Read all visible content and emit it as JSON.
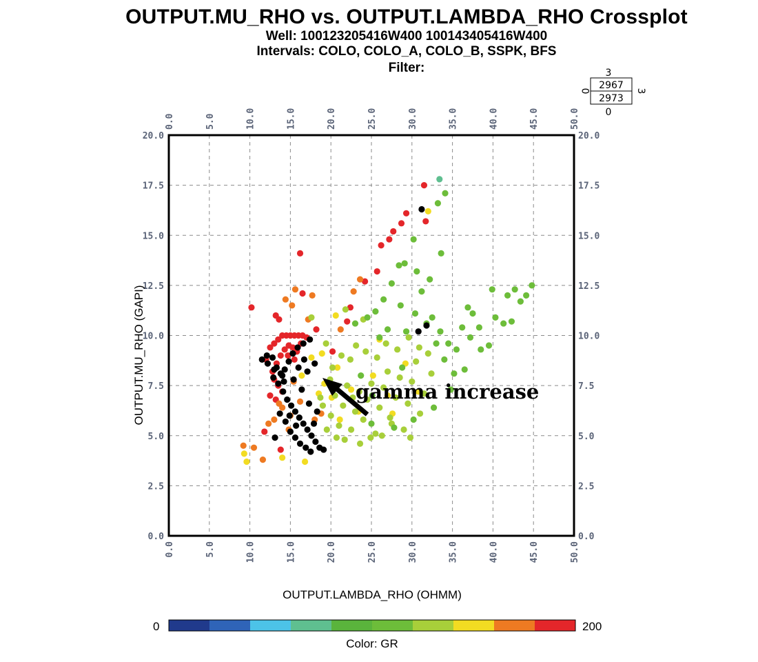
{
  "header": {
    "title": "OUTPUT.MU_RHO vs. OUTPUT.LAMBDA_RHO Crossplot",
    "well": "Well: 100123205416W400 100143405416W400",
    "intervals": "Intervals: COLO, COLO_A, COLO_B, SSPK, BFS",
    "filter": "Filter:"
  },
  "corner_legend": {
    "top": "3",
    "left": "0",
    "right": "3",
    "bottom": "0",
    "values": [
      "2967",
      "2973"
    ]
  },
  "annotation": "gamma increase",
  "colorbar": {
    "min_label": "0",
    "max_label": "200",
    "caption": "Color: GR",
    "colors": [
      "#203a8c",
      "#2f64b8",
      "#4cc3e8",
      "#5fbf90",
      "#5ab43c",
      "#6dbd3a",
      "#a8cf3a",
      "#f2dc22",
      "#ee7a22",
      "#e4262a"
    ]
  },
  "chart_data": {
    "type": "scatter",
    "xlabel": "OUTPUT.LAMBDA_RHO (OHMM)",
    "ylabel": "OUTPUT.MU_RHO (GAPI)",
    "xlim": [
      0,
      50
    ],
    "ylim": [
      0,
      20
    ],
    "xticks": [
      "0.0",
      "5.0",
      "10.0",
      "15.0",
      "20.0",
      "25.0",
      "30.0",
      "35.0",
      "40.0",
      "45.0",
      "50.0"
    ],
    "yticks": [
      "0.0",
      "2.5",
      "5.0",
      "7.5",
      "10.0",
      "12.5",
      "15.0",
      "17.5",
      "20.0"
    ],
    "grid": true,
    "color_by": "GR",
    "series": [
      {
        "color": "#e4262a",
        "points": [
          [
            12,
            8.8
          ],
          [
            12.5,
            9.4
          ],
          [
            13,
            9.6
          ],
          [
            13.5,
            9.8
          ],
          [
            14,
            10
          ],
          [
            14.5,
            10
          ],
          [
            15,
            10
          ],
          [
            15.5,
            10
          ],
          [
            16,
            10
          ],
          [
            16.5,
            10
          ],
          [
            17,
            9.9
          ],
          [
            12.8,
            8.2
          ],
          [
            13.3,
            8.6
          ],
          [
            13.8,
            9.0
          ],
          [
            14.3,
            9.3
          ],
          [
            14.8,
            9.5
          ],
          [
            15.3,
            9.4
          ],
          [
            15.8,
            9.2
          ],
          [
            16.3,
            9.6
          ],
          [
            13,
            7.8
          ],
          [
            13.5,
            7.5
          ],
          [
            14,
            7.2
          ],
          [
            12.5,
            7.0
          ],
          [
            13.2,
            6.8
          ],
          [
            14.7,
            9.0
          ],
          [
            15.5,
            8.8
          ],
          [
            10.2,
            11.4
          ],
          [
            13.2,
            11
          ],
          [
            13.6,
            10.8
          ],
          [
            11.8,
            5.2
          ],
          [
            13.8,
            4.3
          ],
          [
            16.2,
            14.1
          ],
          [
            22,
            10.7
          ],
          [
            22.4,
            11.4
          ],
          [
            24.2,
            12.7
          ],
          [
            25.7,
            13.2
          ],
          [
            26.2,
            14.5
          ],
          [
            27.2,
            14.8
          ],
          [
            27.7,
            15.2
          ],
          [
            28.7,
            15.6
          ],
          [
            29.3,
            16.1
          ],
          [
            31.5,
            17.5
          ],
          [
            31.7,
            15.7
          ],
          [
            16.5,
            12.1
          ],
          [
            18.2,
            10.3
          ],
          [
            20.2,
            9.2
          ]
        ]
      },
      {
        "color": "#ee7a22",
        "points": [
          [
            9.2,
            4.5
          ],
          [
            10.5,
            4.4
          ],
          [
            11.6,
            3.8
          ],
          [
            12.3,
            5.6
          ],
          [
            13.0,
            5.8
          ],
          [
            14.0,
            6.4
          ],
          [
            15.0,
            6.0
          ],
          [
            15.2,
            11.5
          ],
          [
            15.6,
            12.3
          ],
          [
            17.7,
            12.0
          ],
          [
            14.4,
            11.8
          ],
          [
            17.2,
            10.8
          ],
          [
            15.4,
            7.7
          ],
          [
            16.2,
            6.7
          ],
          [
            13.6,
            6.6
          ],
          [
            14.8,
            5.3
          ],
          [
            18.8,
            6.1
          ],
          [
            18.0,
            5.8
          ],
          [
            21.2,
            10.3
          ],
          [
            22.8,
            12.2
          ],
          [
            23.6,
            12.8
          ]
        ]
      },
      {
        "color": "#f2dc22",
        "points": [
          [
            9.3,
            4.1
          ],
          [
            9.6,
            3.7
          ],
          [
            14.0,
            3.9
          ],
          [
            16.8,
            3.7
          ],
          [
            18.5,
            7.1
          ],
          [
            19.2,
            7.6
          ],
          [
            20.1,
            6.9
          ],
          [
            20.8,
            8.4
          ],
          [
            21.1,
            5.8
          ],
          [
            22.5,
            7.3
          ],
          [
            23.4,
            6.2
          ],
          [
            25.2,
            8.0
          ],
          [
            26.0,
            9.8
          ],
          [
            27.0,
            7.0
          ],
          [
            27.6,
            6.1
          ],
          [
            29.2,
            8.6
          ],
          [
            30.8,
            7.2
          ],
          [
            32.0,
            16.2
          ],
          [
            20.6,
            11.0
          ],
          [
            18.9,
            9.1
          ],
          [
            17.6,
            8.9
          ],
          [
            16.4,
            8.0
          ]
        ]
      },
      {
        "color": "#a8cf3a",
        "points": [
          [
            19,
            6.5
          ],
          [
            20,
            6.0
          ],
          [
            20.5,
            7.0
          ],
          [
            21,
            5.5
          ],
          [
            21.5,
            6.5
          ],
          [
            22,
            7.5
          ],
          [
            22.5,
            5.3
          ],
          [
            23,
            6.2
          ],
          [
            23.5,
            7.2
          ],
          [
            24,
            5.8
          ],
          [
            24.5,
            6.8
          ],
          [
            25,
            7.6
          ],
          [
            25.5,
            5.1
          ],
          [
            26,
            6.4
          ],
          [
            26.5,
            7.4
          ],
          [
            27,
            8.2
          ],
          [
            27.5,
            5.6
          ],
          [
            28,
            6.9
          ],
          [
            28.5,
            7.9
          ],
          [
            29,
            5.3
          ],
          [
            29.5,
            6.6
          ],
          [
            30,
            7.7
          ],
          [
            30.5,
            8.7
          ],
          [
            31,
            6.1
          ],
          [
            31.5,
            7.1
          ],
          [
            32,
            9.1
          ],
          [
            20.2,
            8.4
          ],
          [
            21.3,
            9.0
          ],
          [
            22.4,
            8.8
          ],
          [
            23.1,
            9.5
          ],
          [
            24.3,
            9.2
          ],
          [
            25.7,
            8.9
          ],
          [
            26.8,
            9.6
          ],
          [
            28.2,
            9.3
          ],
          [
            29.6,
            9.9
          ],
          [
            21.7,
            4.8
          ],
          [
            23.6,
            4.6
          ],
          [
            24.9,
            4.9
          ],
          [
            26.3,
            5.0
          ],
          [
            19.5,
            5.3
          ],
          [
            20.7,
            4.9
          ],
          [
            18.7,
            6.9
          ],
          [
            19.9,
            7.8
          ],
          [
            22.7,
            6.9
          ],
          [
            27.3,
            5.9
          ],
          [
            24.0,
            10.8
          ],
          [
            21.8,
            11.3
          ],
          [
            19.4,
            9.6
          ],
          [
            30.9,
            9.4
          ],
          [
            32.4,
            8.1
          ],
          [
            29.8,
            4.9
          ],
          [
            17.6,
            10.9
          ]
        ]
      },
      {
        "color": "#6dbd3a",
        "points": [
          [
            23,
            10.6
          ],
          [
            24.5,
            10.9
          ],
          [
            25.5,
            11.2
          ],
          [
            26.5,
            11.8
          ],
          [
            27.5,
            12.6
          ],
          [
            28.4,
            13.5
          ],
          [
            29.1,
            13.6
          ],
          [
            30.2,
            14.8
          ],
          [
            31.2,
            12.2
          ],
          [
            32.5,
            10.9
          ],
          [
            33.5,
            10.2
          ],
          [
            34.5,
            9.6
          ],
          [
            35.5,
            9.3
          ],
          [
            36.5,
            8.3
          ],
          [
            37.5,
            11.1
          ],
          [
            38.5,
            9.3
          ],
          [
            39.5,
            9.5
          ],
          [
            40.3,
            10.9
          ],
          [
            41.3,
            10.6
          ],
          [
            41.8,
            12.0
          ],
          [
            42.7,
            12.3
          ],
          [
            43.4,
            11.7
          ],
          [
            44.1,
            12.0
          ],
          [
            44.8,
            12.5
          ],
          [
            33.2,
            16.6
          ],
          [
            33.6,
            14.1
          ],
          [
            34.1,
            17.1
          ],
          [
            27.0,
            10.3
          ],
          [
            28.6,
            11.5
          ],
          [
            30.4,
            11.1
          ],
          [
            31.8,
            10.6
          ],
          [
            33.0,
            9.6
          ],
          [
            34.0,
            8.8
          ],
          [
            35.2,
            8.1
          ],
          [
            36.2,
            10.4
          ],
          [
            37.2,
            9.9
          ],
          [
            26.0,
            9.9
          ],
          [
            29.3,
            10.2
          ],
          [
            32.2,
            12.8
          ],
          [
            30.6,
            13.2
          ],
          [
            38.3,
            10.4
          ],
          [
            42.3,
            10.7
          ],
          [
            25.0,
            5.6
          ],
          [
            27.8,
            5.4
          ],
          [
            30.2,
            5.8
          ],
          [
            32.7,
            6.4
          ],
          [
            34.8,
            7.3
          ],
          [
            36.9,
            11.4
          ],
          [
            39.9,
            12.3
          ],
          [
            23.7,
            8.0
          ],
          [
            25.1,
            7.0
          ],
          [
            28.8,
            8.4
          ]
        ]
      },
      {
        "color": "#5fbf90",
        "points": [
          [
            33.4,
            17.8
          ]
        ]
      },
      {
        "color": "#000000",
        "points": [
          [
            11.5,
            8.8
          ],
          [
            12.2,
            8.6
          ],
          [
            12.8,
            8.9
          ],
          [
            13.3,
            8.4
          ],
          [
            13.8,
            8.1
          ],
          [
            14.3,
            8.3
          ],
          [
            14.8,
            8.7
          ],
          [
            15.3,
            9.1
          ],
          [
            15.9,
            9.4
          ],
          [
            16.6,
            9.6
          ],
          [
            17.4,
            9.8
          ],
          [
            12.9,
            7.9
          ],
          [
            13.5,
            7.6
          ],
          [
            14.1,
            7.2
          ],
          [
            14.6,
            6.8
          ],
          [
            15.1,
            6.5
          ],
          [
            15.6,
            6.2
          ],
          [
            16.1,
            5.9
          ],
          [
            16.6,
            5.6
          ],
          [
            17.1,
            5.3
          ],
          [
            17.6,
            5.0
          ],
          [
            18.1,
            4.7
          ],
          [
            18.6,
            4.4
          ],
          [
            19.1,
            4.3
          ],
          [
            14.4,
            5.7
          ],
          [
            15.0,
            5.2
          ],
          [
            15.6,
            4.9
          ],
          [
            16.2,
            4.6
          ],
          [
            16.9,
            4.4
          ],
          [
            17.5,
            4.2
          ],
          [
            13.7,
            6.1
          ],
          [
            14.2,
            7.7
          ],
          [
            15.4,
            7.8
          ],
          [
            16.0,
            8.4
          ],
          [
            16.7,
            8.8
          ],
          [
            14.0,
            8.0
          ],
          [
            13.0,
            8.3
          ],
          [
            12.1,
            9.0
          ],
          [
            17.9,
            5.6
          ],
          [
            18.3,
            6.2
          ],
          [
            17.3,
            6.6
          ],
          [
            16.4,
            7.3
          ],
          [
            14.9,
            6.0
          ],
          [
            15.7,
            5.5
          ],
          [
            18.0,
            8.6
          ],
          [
            17.1,
            8.2
          ],
          [
            31.8,
            10.5
          ],
          [
            31.2,
            16.3
          ],
          [
            30.8,
            10.2
          ],
          [
            13.1,
            4.9
          ]
        ]
      }
    ]
  }
}
